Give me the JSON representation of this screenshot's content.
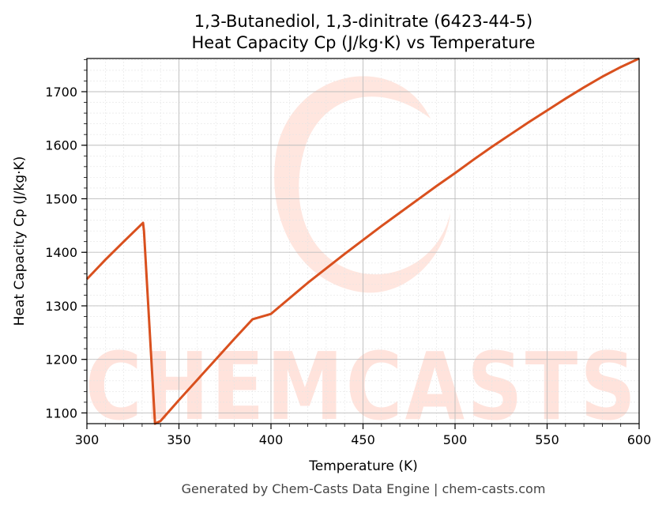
{
  "chart_data": {
    "type": "line",
    "title": "1,3-Butanediol, 1,3-dinitrate (6423-44-5)",
    "subtitle": "Heat Capacity Cp (J/kg·K) vs Temperature",
    "xlabel": "Temperature (K)",
    "ylabel": "Heat Capacity Cp (J/kg·K)",
    "xlim": [
      300,
      600
    ],
    "ylim": [
      1080,
      1762
    ],
    "xticks": [
      300,
      350,
      400,
      450,
      500,
      550,
      600
    ],
    "yticks": [
      1100,
      1200,
      1300,
      1400,
      1500,
      1600,
      1700
    ],
    "grid": true,
    "series": [
      {
        "color": "#d9501e",
        "x": [
          300,
          310,
          320,
          330.5,
          331,
          337,
          340,
          350,
          360,
          370,
          380,
          390,
          400,
          410,
          420,
          430,
          440,
          450,
          460,
          470,
          480,
          490,
          500,
          510,
          520,
          530,
          540,
          550,
          560,
          570,
          580,
          590,
          600
        ],
        "y": [
          1350,
          1386,
          1420,
          1455,
          1440,
          1080,
          1085,
          1124,
          1162,
          1200,
          1238,
          1275,
          1285,
          1314,
          1343,
          1370,
          1397,
          1423,
          1449,
          1474,
          1499,
          1524,
          1548,
          1573,
          1597,
          1620,
          1643,
          1665,
          1687,
          1708,
          1728,
          1746,
          1762
        ]
      }
    ]
  },
  "watermark": {
    "text": "CHEMCASTS",
    "color": "#ffe3dc"
  },
  "footer": {
    "text": "Generated by Chem-Casts Data Engine | chem-casts.com"
  }
}
